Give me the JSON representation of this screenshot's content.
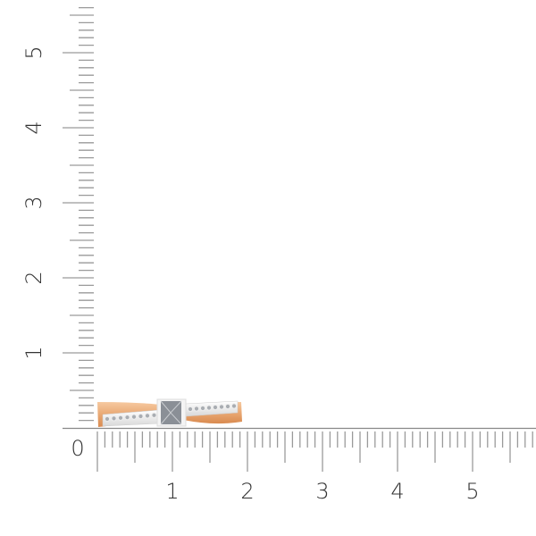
{
  "ruler": {
    "unit_step": 1,
    "minor_step": 0.1,
    "origin_label": "0",
    "x_labels": [
      "1",
      "2",
      "3",
      "4",
      "5"
    ],
    "y_labels": [
      "1",
      "2",
      "3",
      "4",
      "5"
    ],
    "x_max": 5.9,
    "y_max": 5.6,
    "tick_color": "#9a9a9a",
    "label_color": "#333333"
  },
  "product": {
    "name": "ring",
    "gold_color": "#e9a873",
    "white_gold_color": "#f2f2f2",
    "stone_color": "#8a8f96"
  }
}
